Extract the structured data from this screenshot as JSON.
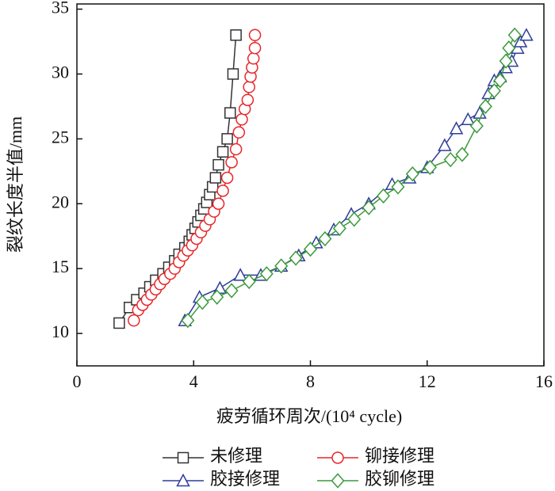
{
  "chart_data": {
    "type": "line",
    "xlabel": "疲劳循环周次/(10⁴ cycle)",
    "ylabel": "裂纹长度半值/mm",
    "xlim": [
      0,
      16
    ],
    "xticks": [
      0,
      4,
      8,
      12,
      16
    ],
    "ylim": [
      7.5,
      35.4
    ],
    "yticks": [
      10,
      15,
      20,
      25,
      30,
      35
    ],
    "series": [
      {
        "name": "未修理",
        "color": "#333333",
        "marker": "square",
        "x": [
          1.45,
          1.8,
          2.05,
          2.3,
          2.5,
          2.7,
          2.95,
          3.15,
          3.35,
          3.5,
          3.7,
          3.85,
          3.95,
          4.05,
          4.15,
          4.25,
          4.35,
          4.45,
          4.55,
          4.65,
          4.75,
          4.85,
          5.0,
          5.15,
          5.25,
          5.35,
          5.45
        ],
        "values": [
          10.8,
          12.0,
          12.6,
          13.1,
          13.6,
          14.1,
          14.6,
          15.1,
          15.6,
          16.1,
          16.6,
          17.1,
          17.6,
          18.1,
          18.6,
          19.1,
          19.6,
          20.1,
          20.7,
          21.3,
          22.0,
          23.0,
          24.0,
          25.0,
          27.0,
          30.0,
          33.0
        ]
      },
      {
        "name": "铆接修理",
        "color": "#e8262a",
        "marker": "circle",
        "x": [
          1.95,
          2.1,
          2.25,
          2.4,
          2.55,
          2.7,
          2.85,
          3.0,
          3.2,
          3.35,
          3.5,
          3.65,
          3.8,
          3.95,
          4.1,
          4.25,
          4.4,
          4.55,
          4.7,
          4.85,
          5.0,
          5.15,
          5.3,
          5.45,
          5.55,
          5.65,
          5.75,
          5.85,
          5.9,
          5.95,
          6.0,
          6.05,
          6.1,
          6.1
        ],
        "values": [
          11.0,
          11.8,
          12.2,
          12.6,
          13.0,
          13.4,
          13.8,
          14.2,
          14.6,
          15.0,
          15.5,
          16.0,
          16.4,
          16.8,
          17.3,
          17.8,
          18.3,
          18.8,
          19.4,
          20.0,
          21.0,
          22.0,
          23.2,
          24.2,
          25.5,
          26.5,
          27.3,
          28.0,
          29.0,
          29.8,
          30.5,
          31.2,
          32.0,
          33.0
        ]
      },
      {
        "name": "胶接修理",
        "color": "#2e3d9a",
        "marker": "triangle",
        "x": [
          3.7,
          4.2,
          4.9,
          5.6,
          6.3,
          7.0,
          7.6,
          8.2,
          8.8,
          9.4,
          10.0,
          10.8,
          11.4,
          12.0,
          12.6,
          13.0,
          13.4,
          13.8,
          14.1,
          14.3,
          14.5,
          14.7,
          14.9,
          15.1,
          15.2,
          15.4
        ],
        "values": [
          11.0,
          12.8,
          13.5,
          14.5,
          14.5,
          15.2,
          16.0,
          17.0,
          18.0,
          19.2,
          20.0,
          21.5,
          22.0,
          22.8,
          24.5,
          25.8,
          26.5,
          27.0,
          28.5,
          29.5,
          29.8,
          30.5,
          31.0,
          32.0,
          32.5,
          33.0
        ]
      },
      {
        "name": "胶铆修理",
        "color": "#3a9a3a",
        "marker": "diamond",
        "x": [
          3.8,
          4.3,
          4.8,
          5.3,
          5.9,
          6.5,
          7.0,
          7.5,
          8.0,
          8.5,
          9.0,
          9.5,
          10.0,
          10.5,
          11.0,
          11.5,
          12.1,
          12.8,
          13.2,
          13.7,
          14.0,
          14.3,
          14.5,
          14.7,
          14.8,
          15.0
        ],
        "values": [
          11.0,
          12.4,
          12.8,
          13.3,
          14.0,
          14.6,
          15.2,
          15.8,
          16.5,
          17.3,
          18.1,
          18.8,
          19.7,
          20.6,
          21.3,
          22.3,
          22.8,
          23.4,
          23.8,
          26.0,
          27.5,
          28.7,
          29.5,
          31.0,
          32.0,
          33.0
        ]
      }
    ]
  }
}
